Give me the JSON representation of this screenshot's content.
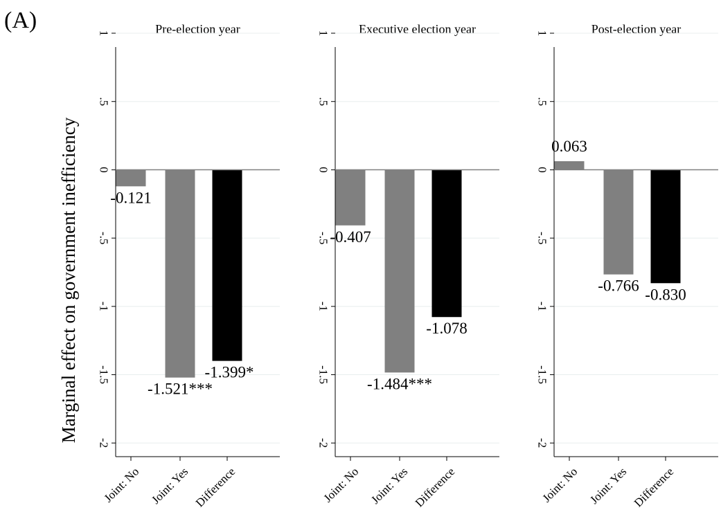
{
  "figure": {
    "panel_label": "(A)",
    "ylabel": "Marginal effect on government inefficiency"
  },
  "chart_data": [
    {
      "type": "bar",
      "title": "Pre-election year",
      "categories": [
        "Joint: No",
        "Joint: Yes",
        "Difference"
      ],
      "values": [
        -0.121,
        -1.521,
        -1.399
      ],
      "labels": [
        "-0.121",
        "-1.521***",
        "-1.399*"
      ],
      "colors": [
        "#808080",
        "#808080",
        "#000000"
      ],
      "ylim": [
        -2.1,
        1.0
      ],
      "yticks": [
        1,
        0.5,
        0,
        -0.5,
        -1,
        -1.5,
        -2
      ],
      "ytick_labels": [
        "1",
        ".5",
        "0",
        "-.5",
        "-1",
        "-1.5",
        "-2"
      ],
      "grid": true
    },
    {
      "type": "bar",
      "title": "Executive election year",
      "categories": [
        "Joint: No",
        "Joint: Yes",
        "Difference"
      ],
      "values": [
        -0.407,
        -1.484,
        -1.078
      ],
      "labels": [
        "-0.407",
        "-1.484***",
        "-1.078"
      ],
      "colors": [
        "#808080",
        "#808080",
        "#000000"
      ],
      "ylim": [
        -2.1,
        1.0
      ],
      "yticks": [
        1,
        0.5,
        0,
        -0.5,
        -1,
        -1.5,
        -2
      ],
      "ytick_labels": [
        "1",
        ".5",
        "0",
        "-.5",
        "-1",
        "-1.5",
        "-2"
      ],
      "grid": true
    },
    {
      "type": "bar",
      "title": "Post-election year",
      "categories": [
        "Joint: No",
        "Joint: Yes",
        "Difference"
      ],
      "values": [
        0.063,
        -0.766,
        -0.83
      ],
      "labels": [
        "0.063",
        "-0.766",
        "-0.830"
      ],
      "colors": [
        "#808080",
        "#808080",
        "#000000"
      ],
      "ylim": [
        -2.1,
        1.0
      ],
      "yticks": [
        1,
        0.5,
        0,
        -0.5,
        -1,
        -1.5,
        -2
      ],
      "ytick_labels": [
        "1",
        ".5",
        "0",
        "-.5",
        "-1",
        "-1.5",
        "-2"
      ],
      "grid": true
    }
  ]
}
